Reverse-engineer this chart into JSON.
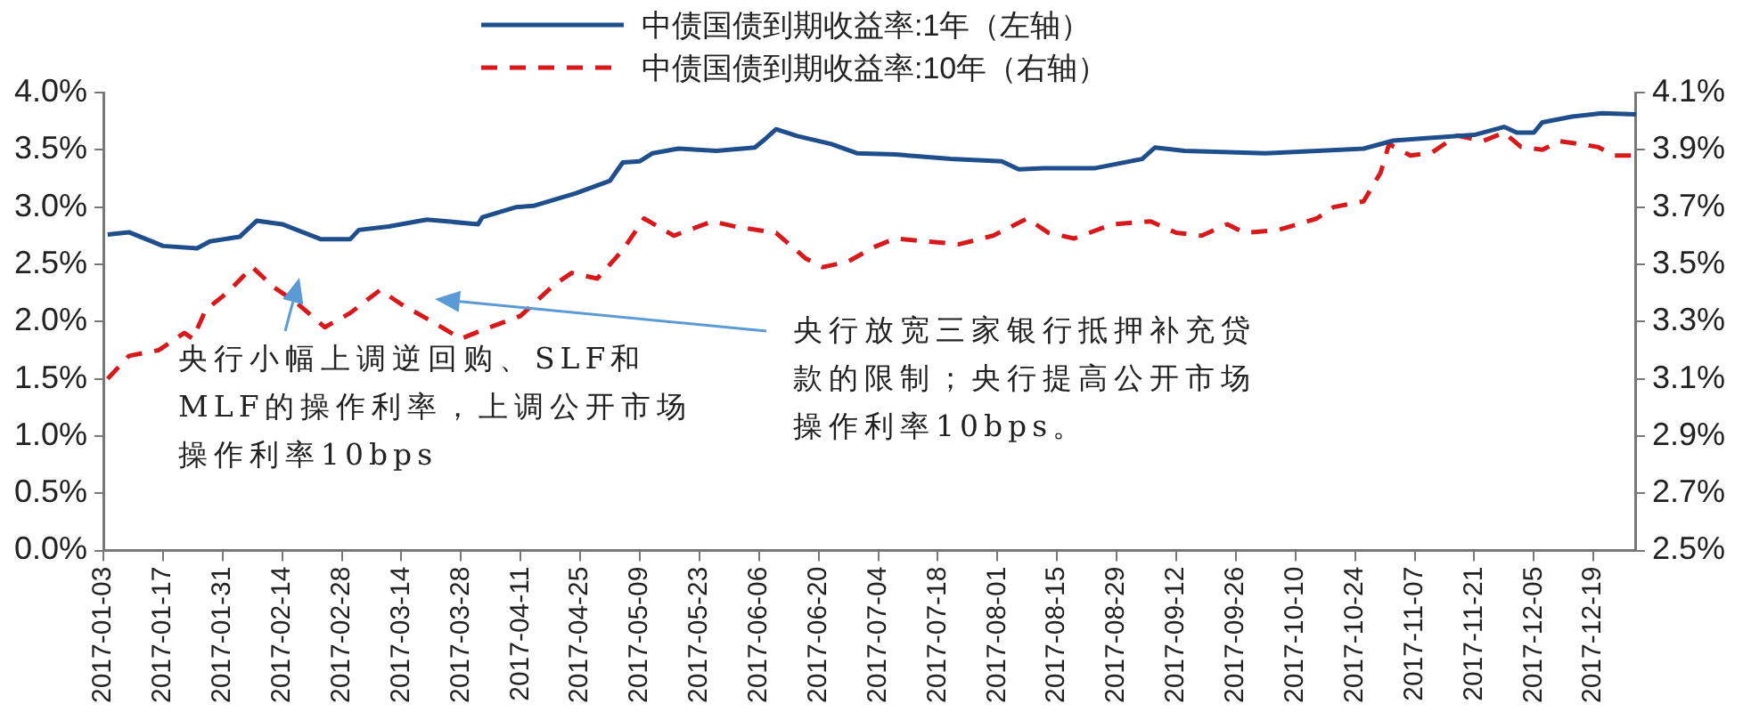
{
  "chart_data": {
    "type": "line",
    "legend": "top",
    "grid": false,
    "marker": "none",
    "xlim": [
      "2017-01-03",
      "2017-12-29"
    ],
    "xticks": [
      "2017-01-03",
      "2017-01-17",
      "2017-01-31",
      "2017-02-14",
      "2017-02-28",
      "2017-03-14",
      "2017-03-28",
      "2017-04-11",
      "2017-04-25",
      "2017-05-09",
      "2017-05-23",
      "2017-06-06",
      "2017-06-20",
      "2017-07-04",
      "2017-07-18",
      "2017-08-01",
      "2017-08-15",
      "2017-08-29",
      "2017-09-12",
      "2017-09-26",
      "2017-10-10",
      "2017-10-24",
      "2017-11-07",
      "2017-11-21",
      "2017-12-05",
      "2017-12-19"
    ],
    "ylim": [
      0,
      4
    ],
    "yticks": [
      {
        "value": 0,
        "label": "0.0%"
      },
      {
        "value": 0.5,
        "label": "0.5%"
      },
      {
        "value": 1,
        "label": "1.0%"
      },
      {
        "value": 1.5,
        "label": "1.5%"
      },
      {
        "value": 2,
        "label": "2.0%"
      },
      {
        "value": 2.5,
        "label": "2.5%"
      },
      {
        "value": 3,
        "label": "3.0%"
      },
      {
        "value": 3.5,
        "label": "3.5%"
      },
      {
        "value": 4,
        "label": "4.0%"
      }
    ],
    "y2lim": [
      2.5,
      4.1
    ],
    "y2ticks": [
      {
        "value": 2.5,
        "label": "2.5%"
      },
      {
        "value": 2.7,
        "label": "2.7%"
      },
      {
        "value": 2.9,
        "label": "2.9%"
      },
      {
        "value": 3.1,
        "label": "3.1%"
      },
      {
        "value": 3.3,
        "label": "3.3%"
      },
      {
        "value": 3.5,
        "label": "3.5%"
      },
      {
        "value": 3.7,
        "label": "3.7%"
      },
      {
        "value": 3.9,
        "label": "3.9%"
      },
      {
        "value": 4.1,
        "label": "4.1%"
      }
    ],
    "series": [
      {
        "name": "中债国债到期收益率:1年（左轴）",
        "color": "#1f4e8c",
        "line_style": "solid",
        "axis": "y",
        "x": [
          "2017-01-04",
          "2017-01-09",
          "2017-01-17",
          "2017-01-25",
          "2017-01-28",
          "2017-02-04",
          "2017-02-08",
          "2017-02-14",
          "2017-02-23",
          "2017-03-02",
          "2017-03-04",
          "2017-03-11",
          "2017-03-20",
          "2017-03-26",
          "2017-04-01",
          "2017-04-02",
          "2017-04-10",
          "2017-04-14",
          "2017-04-24",
          "2017-05-02",
          "2017-05-05",
          "2017-05-09",
          "2017-05-12",
          "2017-05-18",
          "2017-05-27",
          "2017-06-05",
          "2017-06-07",
          "2017-06-10",
          "2017-06-15",
          "2017-06-23",
          "2017-06-29",
          "2017-07-08",
          "2017-07-21",
          "2017-08-02",
          "2017-08-06",
          "2017-08-12",
          "2017-08-24",
          "2017-09-04",
          "2017-09-07",
          "2017-09-14",
          "2017-10-03",
          "2017-10-26",
          "2017-11-02",
          "2017-11-09",
          "2017-11-21",
          "2017-11-28",
          "2017-12-01",
          "2017-12-05",
          "2017-12-07",
          "2017-12-14",
          "2017-12-21",
          "2017-12-29"
        ],
        "values": [
          2.76,
          2.78,
          2.66,
          2.64,
          2.7,
          2.74,
          2.88,
          2.85,
          2.72,
          2.72,
          2.8,
          2.83,
          2.89,
          2.87,
          2.85,
          2.91,
          3.0,
          3.01,
          3.12,
          3.23,
          3.39,
          3.4,
          3.47,
          3.51,
          3.49,
          3.52,
          3.58,
          3.68,
          3.62,
          3.55,
          3.47,
          3.46,
          3.42,
          3.4,
          3.33,
          3.34,
          3.34,
          3.42,
          3.52,
          3.49,
          3.47,
          3.51,
          3.58,
          3.6,
          3.63,
          3.7,
          3.65,
          3.65,
          3.74,
          3.79,
          3.82,
          3.81
        ]
      },
      {
        "name": "中债国债到期收益率:10年（右轴）",
        "color": "#d7191c",
        "line_style": "dashed",
        "axis": "y2",
        "x": [
          "2017-01-04",
          "2017-01-09",
          "2017-01-16",
          "2017-01-22",
          "2017-01-24",
          "2017-01-27",
          "2017-02-01",
          "2017-02-07",
          "2017-02-12",
          "2017-02-17",
          "2017-02-24",
          "2017-03-02",
          "2017-03-09",
          "2017-03-14",
          "2017-03-20",
          "2017-03-28",
          "2017-04-02",
          "2017-04-11",
          "2017-04-19",
          "2017-04-23",
          "2017-04-29",
          "2017-05-05",
          "2017-05-10",
          "2017-05-17",
          "2017-05-26",
          "2017-06-01",
          "2017-06-10",
          "2017-06-17",
          "2017-06-21",
          "2017-06-27",
          "2017-07-03",
          "2017-07-08",
          "2017-07-23",
          "2017-07-31",
          "2017-08-08",
          "2017-08-13",
          "2017-08-19",
          "2017-08-28",
          "2017-09-06",
          "2017-09-12",
          "2017-09-18",
          "2017-09-24",
          "2017-09-28",
          "2017-10-06",
          "2017-10-15",
          "2017-10-19",
          "2017-10-26",
          "2017-10-30",
          "2017-11-01",
          "2017-11-06",
          "2017-11-11",
          "2017-11-17",
          "2017-11-23",
          "2017-11-28",
          "2017-12-02",
          "2017-12-07",
          "2017-12-11",
          "2017-12-16",
          "2017-12-20",
          "2017-12-24",
          "2017-12-29"
        ],
        "values": [
          3.1,
          3.18,
          3.2,
          3.26,
          3.24,
          3.34,
          3.4,
          3.49,
          3.42,
          3.37,
          3.28,
          3.33,
          3.41,
          3.36,
          3.31,
          3.24,
          3.27,
          3.32,
          3.43,
          3.47,
          3.45,
          3.55,
          3.66,
          3.6,
          3.65,
          3.63,
          3.61,
          3.52,
          3.49,
          3.51,
          3.56,
          3.59,
          3.57,
          3.6,
          3.66,
          3.61,
          3.59,
          3.64,
          3.65,
          3.61,
          3.6,
          3.64,
          3.61,
          3.62,
          3.66,
          3.7,
          3.72,
          3.82,
          3.92,
          3.88,
          3.89,
          3.95,
          3.93,
          3.96,
          3.91,
          3.9,
          3.93,
          3.92,
          3.91,
          3.88,
          3.88
        ]
      }
    ],
    "annotations": [
      "央行小幅上调逆回购、SLF和MLF的操作利率，上调公开市场操作利率10bps",
      "央行放宽三家银行抵押补充贷款的限制；央行提高公开市场操作利率10bps。"
    ]
  }
}
